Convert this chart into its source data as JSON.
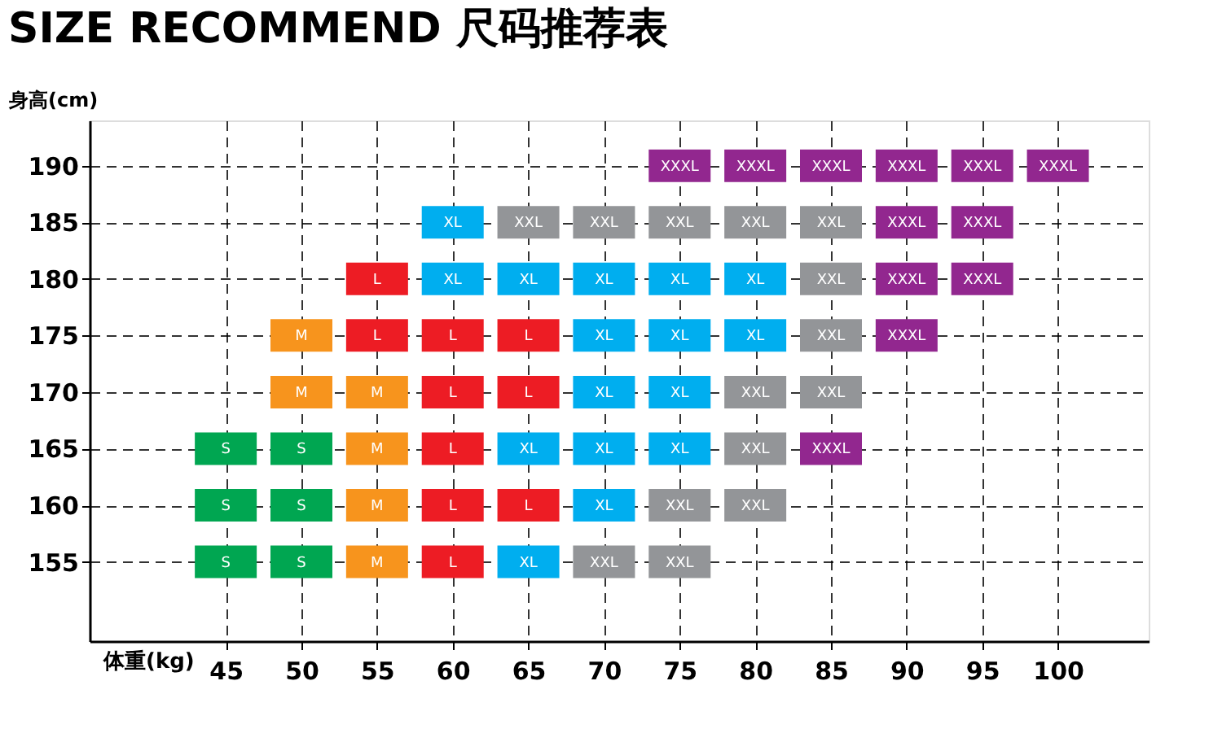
{
  "chart_data": {
    "type": "scatter",
    "title": "SIZE RECOMMEND 尺码推荐表",
    "xlabel": "体重(kg)",
    "ylabel": "身高(cm)",
    "xlim": [
      36,
      106
    ],
    "xticks": [
      45,
      50,
      55,
      60,
      65,
      70,
      75,
      80,
      85,
      90,
      95,
      100
    ],
    "ylim": [
      148,
      194
    ],
    "yticks": [
      155,
      160,
      165,
      170,
      175,
      180,
      185,
      190
    ],
    "grid": true,
    "marker": "square",
    "legend": false,
    "series": [
      {
        "name": "S",
        "color": "#00a651",
        "x": [
          45,
          45,
          45,
          50,
          50,
          50
        ],
        "values": [
          165,
          160,
          155,
          165,
          160,
          155
        ]
      },
      {
        "name": "M",
        "color": "#f7941d",
        "x": [
          50,
          50,
          55,
          55,
          55,
          55
        ],
        "values": [
          175,
          170,
          170,
          165,
          160,
          155
        ]
      },
      {
        "name": "L",
        "color": "#ed1c24",
        "x": [
          55,
          55,
          60,
          60,
          60,
          60,
          60,
          65,
          65,
          65
        ],
        "values": [
          180,
          175,
          175,
          170,
          165,
          160,
          155,
          175,
          170,
          160
        ]
      },
      {
        "name": "XL",
        "color": "#00aeef",
        "x": [
          60,
          60,
          65,
          65,
          65,
          70,
          70,
          70,
          70,
          70,
          75,
          75,
          75,
          75,
          80,
          80
        ],
        "values": [
          185,
          180,
          180,
          165,
          155,
          180,
          175,
          170,
          165,
          160,
          180,
          175,
          170,
          165,
          180,
          175
        ]
      },
      {
        "name": "XXL",
        "color": "#939598",
        "x": [
          65,
          70,
          70,
          75,
          75,
          75,
          80,
          80,
          80,
          80,
          85,
          85,
          85,
          85
        ],
        "values": [
          185,
          185,
          155,
          185,
          160,
          155,
          185,
          170,
          165,
          160,
          185,
          180,
          175,
          170
        ]
      },
      {
        "name": "XXXL",
        "color": "#92278f",
        "x": [
          75,
          80,
          85,
          85,
          90,
          90,
          90,
          90,
          95,
          95,
          95,
          100
        ],
        "values": [
          190,
          190,
          190,
          165,
          190,
          185,
          180,
          175,
          190,
          185,
          180,
          190
        ]
      }
    ]
  }
}
